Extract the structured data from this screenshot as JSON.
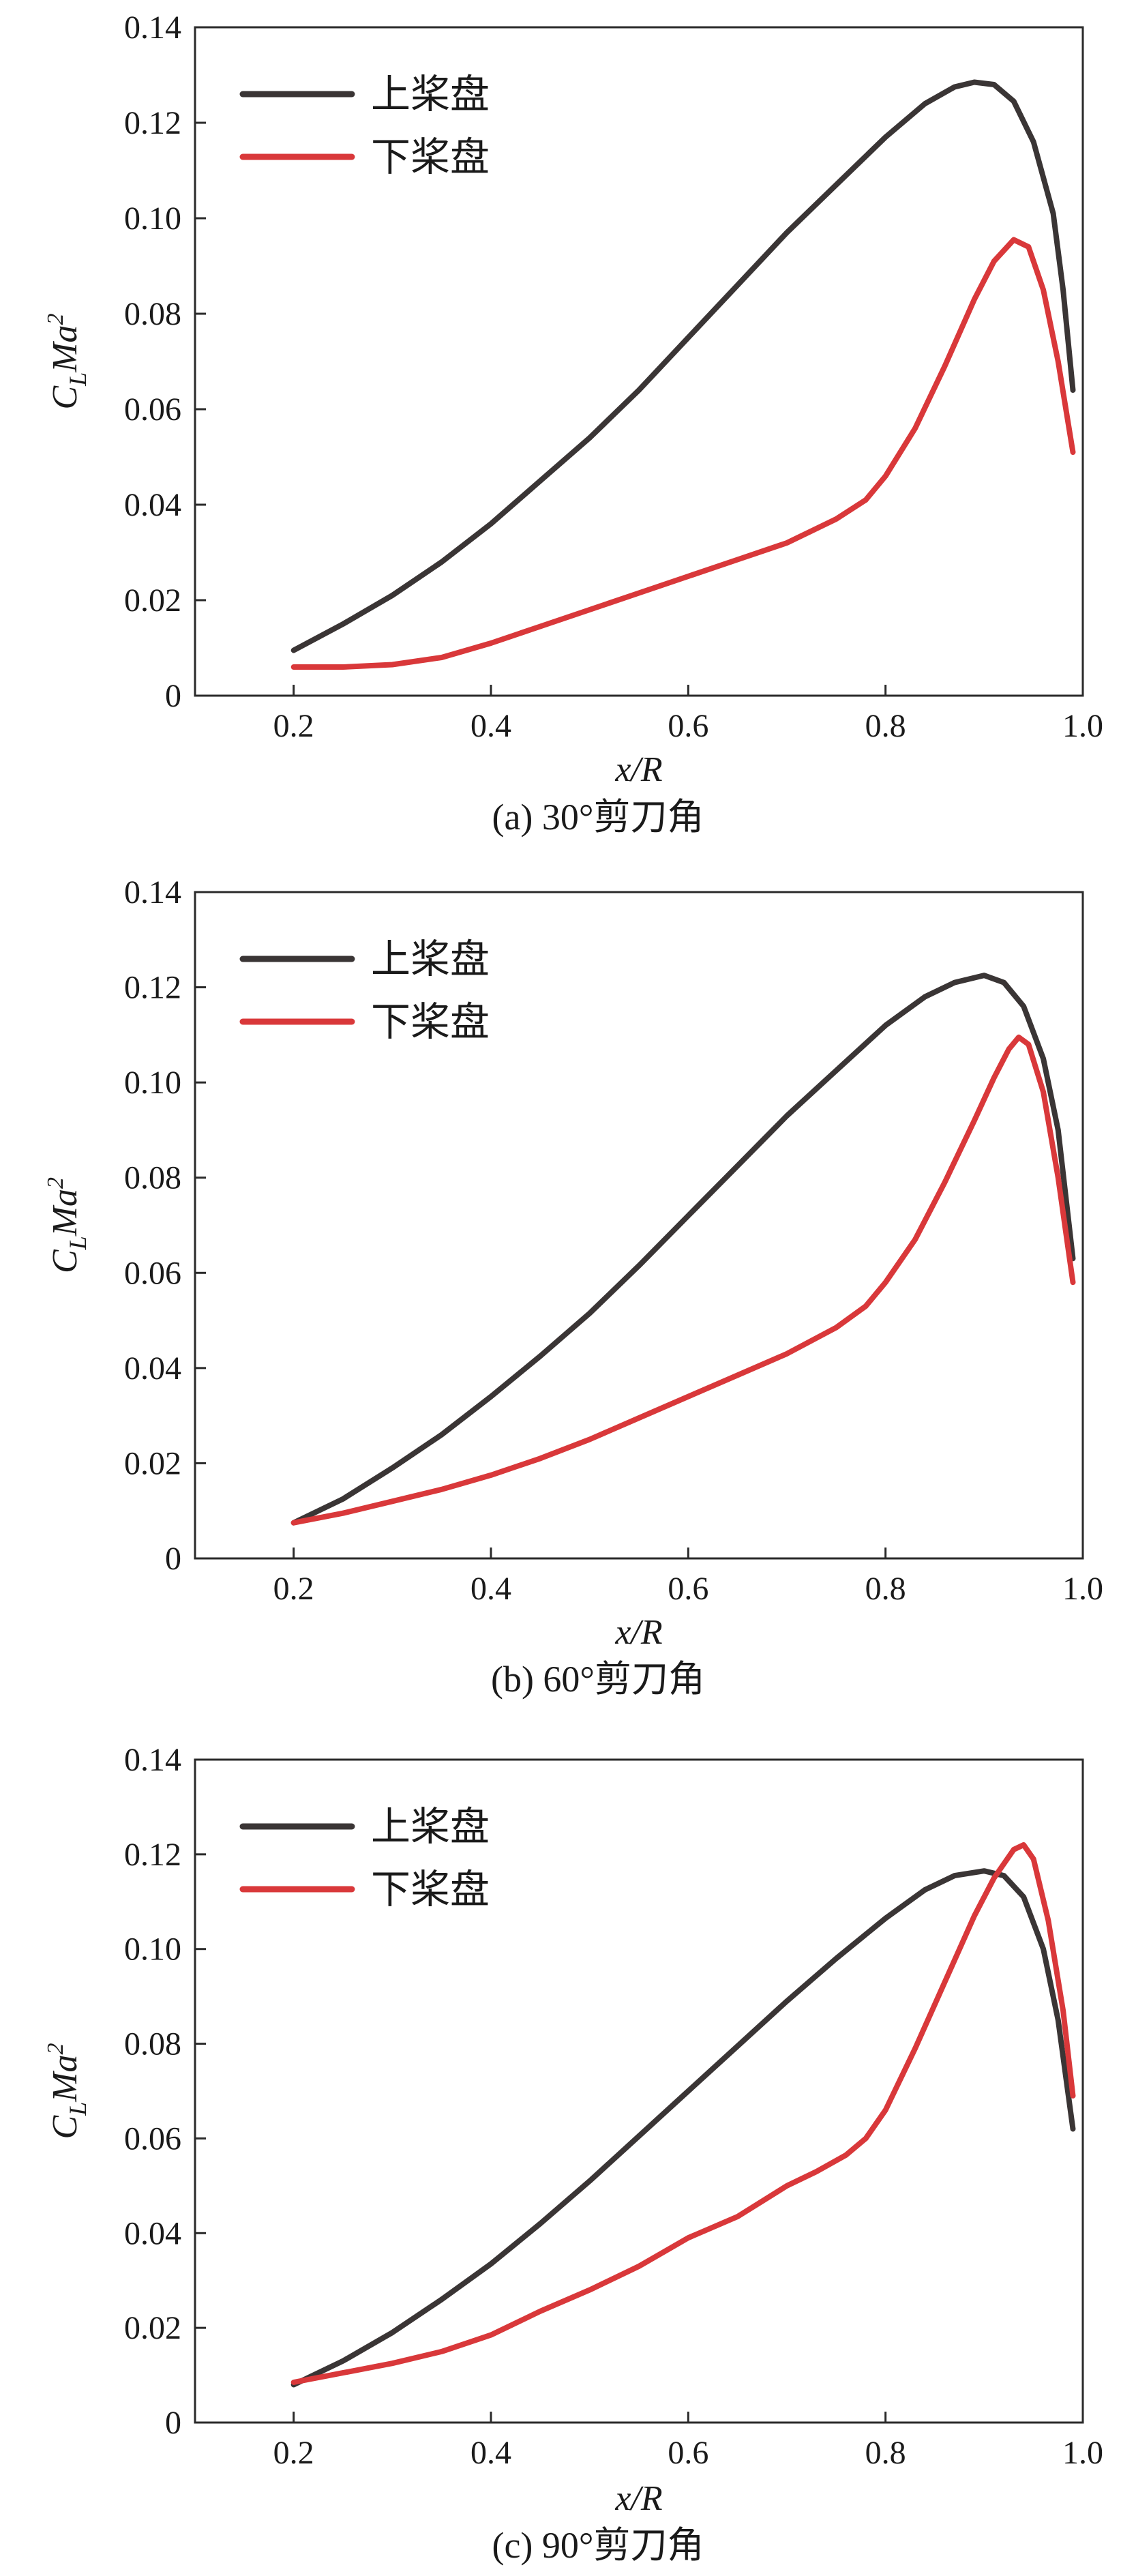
{
  "chart_data": [
    {
      "type": "line",
      "caption": "(a) 30°剪刀角",
      "xlabel": "x/R",
      "ylabel": {
        "base": "C",
        "sub": "L",
        "mid": "Ma",
        "sup": "2"
      },
      "xlim": [
        0.1,
        1.0
      ],
      "ylim": [
        0,
        0.14
      ],
      "xticks": [
        "0.2",
        "0.4",
        "0.6",
        "0.8",
        "1.0"
      ],
      "yticks": [
        "0",
        "0.02",
        "0.04",
        "0.06",
        "0.08",
        "0.10",
        "0.12",
        "0.14"
      ],
      "grid": false,
      "legend_position": "top-left",
      "colors": {
        "upper": "#3a3535",
        "lower": "#d9383a"
      },
      "series": [
        {
          "name": "上桨盘",
          "color": "#3a3535",
          "points": [
            [
              0.2,
              0.0095
            ],
            [
              0.25,
              0.015
            ],
            [
              0.3,
              0.021
            ],
            [
              0.35,
              0.028
            ],
            [
              0.4,
              0.036
            ],
            [
              0.45,
              0.045
            ],
            [
              0.5,
              0.054
            ],
            [
              0.55,
              0.064
            ],
            [
              0.6,
              0.075
            ],
            [
              0.65,
              0.086
            ],
            [
              0.7,
              0.097
            ],
            [
              0.75,
              0.107
            ],
            [
              0.8,
              0.117
            ],
            [
              0.84,
              0.124
            ],
            [
              0.87,
              0.1275
            ],
            [
              0.89,
              0.1285
            ],
            [
              0.91,
              0.128
            ],
            [
              0.93,
              0.1245
            ],
            [
              0.95,
              0.116
            ],
            [
              0.97,
              0.101
            ],
            [
              0.98,
              0.085
            ],
            [
              0.99,
              0.064
            ]
          ]
        },
        {
          "name": "下桨盘",
          "color": "#d9383a",
          "points": [
            [
              0.2,
              0.006
            ],
            [
              0.25,
              0.006
            ],
            [
              0.3,
              0.0065
            ],
            [
              0.35,
              0.008
            ],
            [
              0.4,
              0.011
            ],
            [
              0.45,
              0.0145
            ],
            [
              0.5,
              0.018
            ],
            [
              0.55,
              0.0215
            ],
            [
              0.6,
              0.025
            ],
            [
              0.65,
              0.0285
            ],
            [
              0.7,
              0.032
            ],
            [
              0.75,
              0.037
            ],
            [
              0.78,
              0.041
            ],
            [
              0.8,
              0.046
            ],
            [
              0.83,
              0.056
            ],
            [
              0.86,
              0.069
            ],
            [
              0.89,
              0.083
            ],
            [
              0.91,
              0.091
            ],
            [
              0.93,
              0.0955
            ],
            [
              0.945,
              0.094
            ],
            [
              0.96,
              0.085
            ],
            [
              0.975,
              0.07
            ],
            [
              0.99,
              0.051
            ]
          ]
        }
      ]
    },
    {
      "type": "line",
      "caption": "(b) 60°剪刀角",
      "xlabel": "x/R",
      "ylabel": {
        "base": "C",
        "sub": "L",
        "mid": "Ma",
        "sup": "2"
      },
      "xlim": [
        0.1,
        1.0
      ],
      "ylim": [
        0,
        0.14
      ],
      "xticks": [
        "0.2",
        "0.4",
        "0.6",
        "0.8",
        "1.0"
      ],
      "yticks": [
        "0",
        "0.02",
        "0.04",
        "0.06",
        "0.08",
        "0.10",
        "0.12",
        "0.14"
      ],
      "grid": false,
      "legend_position": "top-left",
      "colors": {
        "upper": "#3a3535",
        "lower": "#d9383a"
      },
      "series": [
        {
          "name": "上桨盘",
          "color": "#3a3535",
          "points": [
            [
              0.2,
              0.0075
            ],
            [
              0.25,
              0.0125
            ],
            [
              0.3,
              0.019
            ],
            [
              0.35,
              0.026
            ],
            [
              0.4,
              0.034
            ],
            [
              0.45,
              0.0425
            ],
            [
              0.5,
              0.0515
            ],
            [
              0.55,
              0.0615
            ],
            [
              0.6,
              0.072
            ],
            [
              0.65,
              0.0825
            ],
            [
              0.7,
              0.093
            ],
            [
              0.75,
              0.1025
            ],
            [
              0.8,
              0.112
            ],
            [
              0.84,
              0.118
            ],
            [
              0.87,
              0.121
            ],
            [
              0.9,
              0.1225
            ],
            [
              0.92,
              0.121
            ],
            [
              0.94,
              0.116
            ],
            [
              0.96,
              0.105
            ],
            [
              0.975,
              0.09
            ],
            [
              0.99,
              0.063
            ]
          ]
        },
        {
          "name": "下桨盘",
          "color": "#d9383a",
          "points": [
            [
              0.2,
              0.0075
            ],
            [
              0.25,
              0.0095
            ],
            [
              0.3,
              0.012
            ],
            [
              0.35,
              0.0145
            ],
            [
              0.4,
              0.0175
            ],
            [
              0.45,
              0.021
            ],
            [
              0.5,
              0.025
            ],
            [
              0.55,
              0.0295
            ],
            [
              0.6,
              0.034
            ],
            [
              0.65,
              0.0385
            ],
            [
              0.7,
              0.043
            ],
            [
              0.75,
              0.0485
            ],
            [
              0.78,
              0.053
            ],
            [
              0.8,
              0.058
            ],
            [
              0.83,
              0.067
            ],
            [
              0.86,
              0.079
            ],
            [
              0.89,
              0.092
            ],
            [
              0.91,
              0.101
            ],
            [
              0.925,
              0.107
            ],
            [
              0.935,
              0.1095
            ],
            [
              0.945,
              0.108
            ],
            [
              0.96,
              0.098
            ],
            [
              0.975,
              0.08
            ],
            [
              0.99,
              0.058
            ]
          ]
        }
      ]
    },
    {
      "type": "line",
      "caption": "(c) 90°剪刀角",
      "xlabel": "x/R",
      "ylabel": {
        "base": "C",
        "sub": "L",
        "mid": "Ma",
        "sup": "2"
      },
      "xlim": [
        0.1,
        1.0
      ],
      "ylim": [
        0,
        0.14
      ],
      "xticks": [
        "0.2",
        "0.4",
        "0.6",
        "0.8",
        "1.0"
      ],
      "yticks": [
        "0",
        "0.02",
        "0.04",
        "0.06",
        "0.08",
        "0.10",
        "0.12",
        "0.14"
      ],
      "grid": false,
      "legend_position": "top-left",
      "colors": {
        "upper": "#3a3535",
        "lower": "#d9383a"
      },
      "series": [
        {
          "name": "上桨盘",
          "color": "#3a3535",
          "points": [
            [
              0.2,
              0.008
            ],
            [
              0.25,
              0.013
            ],
            [
              0.3,
              0.019
            ],
            [
              0.35,
              0.026
            ],
            [
              0.4,
              0.0335
            ],
            [
              0.45,
              0.042
            ],
            [
              0.5,
              0.051
            ],
            [
              0.55,
              0.0605
            ],
            [
              0.6,
              0.07
            ],
            [
              0.65,
              0.0795
            ],
            [
              0.7,
              0.089
            ],
            [
              0.75,
              0.098
            ],
            [
              0.8,
              0.1065
            ],
            [
              0.84,
              0.1125
            ],
            [
              0.87,
              0.1155
            ],
            [
              0.9,
              0.1165
            ],
            [
              0.92,
              0.1155
            ],
            [
              0.94,
              0.111
            ],
            [
              0.96,
              0.1
            ],
            [
              0.975,
              0.085
            ],
            [
              0.99,
              0.062
            ]
          ]
        },
        {
          "name": "下桨盘",
          "color": "#d9383a",
          "points": [
            [
              0.2,
              0.0085
            ],
            [
              0.25,
              0.0105
            ],
            [
              0.3,
              0.0125
            ],
            [
              0.35,
              0.015
            ],
            [
              0.4,
              0.0185
            ],
            [
              0.45,
              0.0235
            ],
            [
              0.5,
              0.028
            ],
            [
              0.55,
              0.033
            ],
            [
              0.6,
              0.039
            ],
            [
              0.65,
              0.0435
            ],
            [
              0.7,
              0.05
            ],
            [
              0.73,
              0.053
            ],
            [
              0.76,
              0.0565
            ],
            [
              0.78,
              0.06
            ],
            [
              0.8,
              0.066
            ],
            [
              0.83,
              0.079
            ],
            [
              0.86,
              0.093
            ],
            [
              0.89,
              0.107
            ],
            [
              0.91,
              0.115
            ],
            [
              0.93,
              0.121
            ],
            [
              0.94,
              0.122
            ],
            [
              0.95,
              0.119
            ],
            [
              0.965,
              0.106
            ],
            [
              0.98,
              0.087
            ],
            [
              0.99,
              0.069
            ]
          ]
        }
      ]
    }
  ]
}
